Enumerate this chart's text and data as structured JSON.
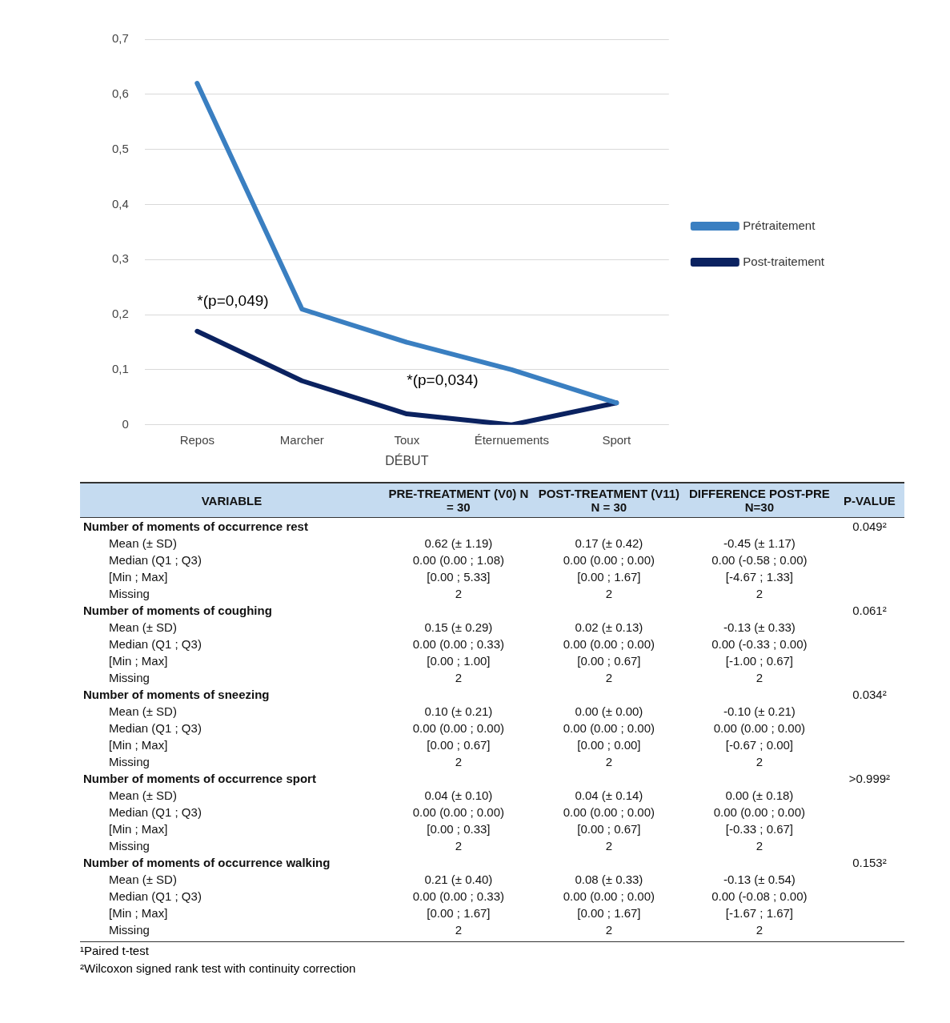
{
  "chart_data": [
    {
      "type": "line",
      "categories": [
        "Repos",
        "Marcher",
        "Toux",
        "Éternuements",
        "Sport"
      ],
      "series": [
        {
          "name": "Prétraitement",
          "color": "#3a7fc1",
          "values": [
            0.62,
            0.21,
            0.15,
            0.1,
            0.04
          ]
        },
        {
          "name": "Post-traitement",
          "color": "#0b2260",
          "values": [
            0.17,
            0.08,
            0.02,
            0.0,
            0.04
          ]
        }
      ],
      "xlabel": "DÉBUT",
      "ylim": [
        0,
        0.7
      ],
      "yticks": [
        0,
        {
          "value": 0.1,
          "label": "0,1"
        },
        {
          "value": 0.2,
          "label": "0,2"
        },
        {
          "value": 0.3,
          "label": "0,3"
        },
        {
          "value": 0.4,
          "label": "0,4"
        },
        {
          "value": 0.5,
          "label": "0,5"
        },
        {
          "value": 0.6,
          "label": "0,6"
        },
        {
          "value": 0.7,
          "label": "0,7"
        }
      ],
      "grid": "y",
      "legend": "right",
      "marker": "none",
      "line_style": "solid",
      "annotations": [
        "*(p=0,049)",
        "*(p=0,034)"
      ]
    },
    {
      "type": "other",
      "categories": [
        "VARIABLE",
        "PRE-TREATMENT (V0) N = 30",
        "POST-TREATMENT (V11) N = 30",
        "DIFFERENCE POST-PRE N=30",
        "P-VALUE"
      ],
      "y_categories": [
        "Number of moments of occurrence rest",
        "Mean (± SD)",
        "Median (Q1 ; Q3)",
        "[Min ; Max]",
        "Missing",
        "Number of moments of coughing",
        "Mean (± SD)",
        "Median (Q1 ; Q3)",
        "[Min ; Max]",
        "Missing",
        "Number of moments of sneezing",
        "Mean (± SD)",
        "Median (Q1 ; Q3)",
        "[Min ; Max]",
        "Missing",
        "Number of moments of occurrence sport",
        "Mean (± SD)",
        "Median (Q1 ; Q3)",
        "[Min ; Max]",
        "Missing",
        "Number of moments of occurrence walking",
        "Mean (± SD)",
        "Median (Q1 ; Q3)",
        "[Min ; Max]",
        "Missing"
      ],
      "annotations": [
        "0.049²",
        "0.62 (± 1.19)",
        "0.17 (± 0.42)",
        "-0.45 (± 1.17)",
        "0.00 (0.00 ; 1.08)",
        "0.00 (0.00 ; 0.00)",
        "0.00 (-0.58 ; 0.00)",
        "[0.00 ; 5.33]",
        "[0.00 ; 1.67]",
        "[-4.67 ; 1.33]",
        "2",
        "2",
        "2",
        "0.061²",
        "0.15 (± 0.29)",
        "0.02 (± 0.13)",
        "-0.13 (± 0.33)",
        "0.00 (0.00 ; 0.33)",
        "0.00 (0.00 ; 0.00)",
        "0.00 (-0.33 ; 0.00)",
        "[0.00 ; 1.00]",
        "[0.00 ; 0.67]",
        "[-1.00 ; 0.67]",
        "2",
        "2",
        "2",
        "0.034²",
        "0.10 (± 0.21)",
        "0.00 (± 0.00)",
        "-0.10 (± 0.21)",
        "0.00 (0.00 ; 0.00)",
        "0.00 (0.00 ; 0.00)",
        "0.00 (0.00 ; 0.00)",
        "[0.00 ; 0.67]",
        "[0.00 ; 0.00]",
        "[-0.67 ; 0.00]",
        "2",
        "2",
        "2",
        ">0.999²",
        "0.04 (± 0.10)",
        "0.04 (± 0.14)",
        "0.00 (± 0.18)",
        "0.00 (0.00 ; 0.00)",
        "0.00 (0.00 ; 0.00)",
        "0.00 (0.00 ; 0.00)",
        "[0.00 ; 0.33]",
        "[0.00 ; 0.67]",
        "[-0.33 ; 0.67]",
        "2",
        "2",
        "2",
        "0.153²",
        "0.21 (± 0.40)",
        "0.08 (± 0.33)",
        "-0.13 (± 0.54)",
        "0.00 (0.00 ; 0.33)",
        "0.00 (0.00 ; 0.00)",
        "0.00 (-0.08 ; 0.00)",
        "[0.00 ; 1.67]",
        "[0.00 ; 1.67]",
        "[-1.67 ; 1.67]",
        "2",
        "2",
        "2",
        "¹Paired t-test",
        "²Wilcoxon signed rank test with continuity correction"
      ]
    }
  ]
}
